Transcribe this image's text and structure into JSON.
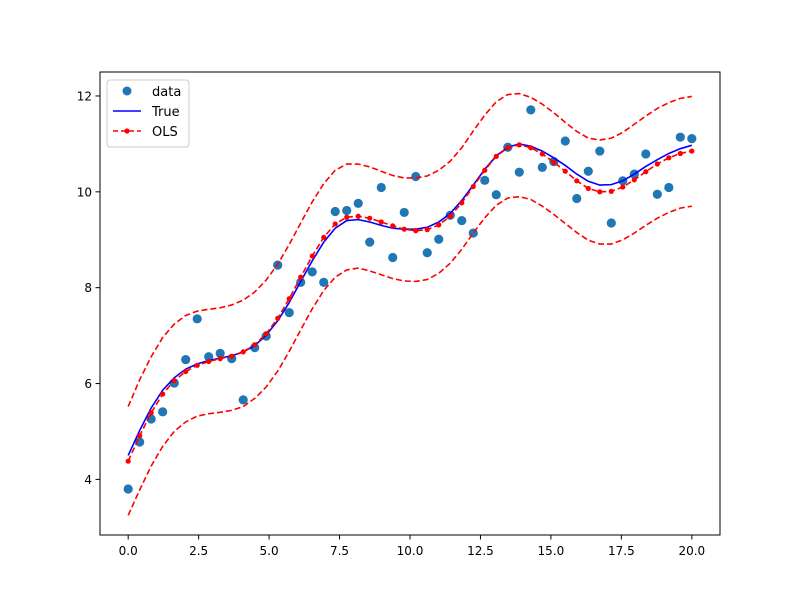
{
  "chart_data": {
    "type": "scatter",
    "x": [
      0.0,
      0.408,
      0.816,
      1.224,
      1.633,
      2.041,
      2.449,
      2.857,
      3.265,
      3.673,
      4.082,
      4.49,
      4.898,
      5.306,
      5.714,
      6.122,
      6.531,
      6.939,
      7.347,
      7.755,
      8.163,
      8.571,
      8.98,
      9.388,
      9.796,
      10.204,
      10.612,
      11.02,
      11.429,
      11.837,
      12.245,
      12.653,
      13.061,
      13.469,
      13.878,
      14.286,
      14.694,
      15.102,
      15.51,
      15.918,
      16.327,
      16.735,
      17.143,
      17.551,
      17.959,
      18.367,
      18.776,
      19.184,
      19.592,
      20.0
    ],
    "series": [
      {
        "name": "data",
        "kind": "markers",
        "color": "#1f77b4",
        "values": [
          3.8,
          4.78,
          5.26,
          5.41,
          6.01,
          6.5,
          7.35,
          6.56,
          6.63,
          6.52,
          5.66,
          6.75,
          6.99,
          8.47,
          7.48,
          8.11,
          8.33,
          8.11,
          9.59,
          9.61,
          9.76,
          8.95,
          10.09,
          8.63,
          9.57,
          10.32,
          8.73,
          9.01,
          9.51,
          9.4,
          9.14,
          10.24,
          9.94,
          10.93,
          10.41,
          11.71,
          10.51,
          10.63,
          11.06,
          9.86,
          10.43,
          10.85,
          9.35,
          10.23,
          10.37,
          10.79,
          9.95,
          10.09,
          11.14,
          11.11
        ]
      },
      {
        "name": "True",
        "kind": "line",
        "color": "#0000ff",
        "values": [
          4.5,
          5.02,
          5.49,
          5.86,
          6.12,
          6.3,
          6.41,
          6.48,
          6.53,
          6.58,
          6.66,
          6.79,
          7.01,
          7.31,
          7.69,
          8.13,
          8.56,
          8.95,
          9.24,
          9.4,
          9.42,
          9.37,
          9.3,
          9.24,
          9.22,
          9.22,
          9.26,
          9.37,
          9.55,
          9.82,
          10.14,
          10.47,
          10.75,
          10.93,
          11.0,
          10.95,
          10.85,
          10.71,
          10.55,
          10.37,
          10.22,
          10.14,
          10.15,
          10.23,
          10.37,
          10.53,
          10.67,
          10.8,
          10.9,
          10.97
        ]
      },
      {
        "name": "OLS",
        "kind": "line-markers",
        "color": "#ff0000",
        "values": [
          4.38,
          4.91,
          5.39,
          5.78,
          6.06,
          6.25,
          6.38,
          6.46,
          6.52,
          6.57,
          6.66,
          6.81,
          7.04,
          7.36,
          7.77,
          8.22,
          8.66,
          9.05,
          9.33,
          9.47,
          9.49,
          9.45,
          9.37,
          9.29,
          9.22,
          9.19,
          9.21,
          9.31,
          9.49,
          9.77,
          10.11,
          10.45,
          10.74,
          10.92,
          10.98,
          10.92,
          10.79,
          10.62,
          10.43,
          10.23,
          10.07,
          10.0,
          10.01,
          10.1,
          10.25,
          10.42,
          10.58,
          10.71,
          10.8,
          10.85
        ]
      },
      {
        "name": "",
        "kind": "dashed",
        "color": "#ff0000",
        "values": [
          5.52,
          6.08,
          6.56,
          6.96,
          7.24,
          7.42,
          7.51,
          7.55,
          7.58,
          7.64,
          7.74,
          7.91,
          8.16,
          8.49,
          8.9,
          9.35,
          9.79,
          10.17,
          10.45,
          10.58,
          10.58,
          10.52,
          10.43,
          10.34,
          10.29,
          10.29,
          10.33,
          10.45,
          10.64,
          10.92,
          11.27,
          11.6,
          11.88,
          12.03,
          12.05,
          11.97,
          11.83,
          11.65,
          11.45,
          11.26,
          11.12,
          11.08,
          11.12,
          11.24,
          11.41,
          11.58,
          11.74,
          11.86,
          11.95,
          11.99
        ]
      },
      {
        "name": "",
        "kind": "dashed",
        "color": "#ff0000",
        "values": [
          3.25,
          3.78,
          4.28,
          4.69,
          5.0,
          5.2,
          5.32,
          5.37,
          5.4,
          5.44,
          5.52,
          5.69,
          5.93,
          6.26,
          6.67,
          7.12,
          7.56,
          7.94,
          8.22,
          8.37,
          8.41,
          8.35,
          8.27,
          8.19,
          8.14,
          8.13,
          8.17,
          8.3,
          8.51,
          8.8,
          9.14,
          9.46,
          9.72,
          9.87,
          9.9,
          9.84,
          9.7,
          9.53,
          9.34,
          9.15,
          8.99,
          8.91,
          8.91,
          9.0,
          9.14,
          9.3,
          9.45,
          9.57,
          9.66,
          9.7
        ]
      }
    ],
    "xlim": [
      -1.0,
      21.0
    ],
    "ylim": [
      2.84,
      12.5
    ],
    "xticks": [
      0.0,
      2.5,
      5.0,
      7.5,
      10.0,
      12.5,
      15.0,
      17.5,
      20.0
    ],
    "xtick_labels": [
      "0.0",
      "2.5",
      "5.0",
      "7.5",
      "10.0",
      "12.5",
      "15.0",
      "17.5",
      "20.0"
    ],
    "yticks": [
      4,
      6,
      8,
      10,
      12
    ],
    "ytick_labels": [
      "4",
      "6",
      "8",
      "10",
      "12"
    ],
    "grid": false,
    "legend": {
      "position": "top-left",
      "entries": [
        "data",
        "True",
        "OLS"
      ]
    },
    "title": "",
    "xlabel": "",
    "ylabel": ""
  }
}
